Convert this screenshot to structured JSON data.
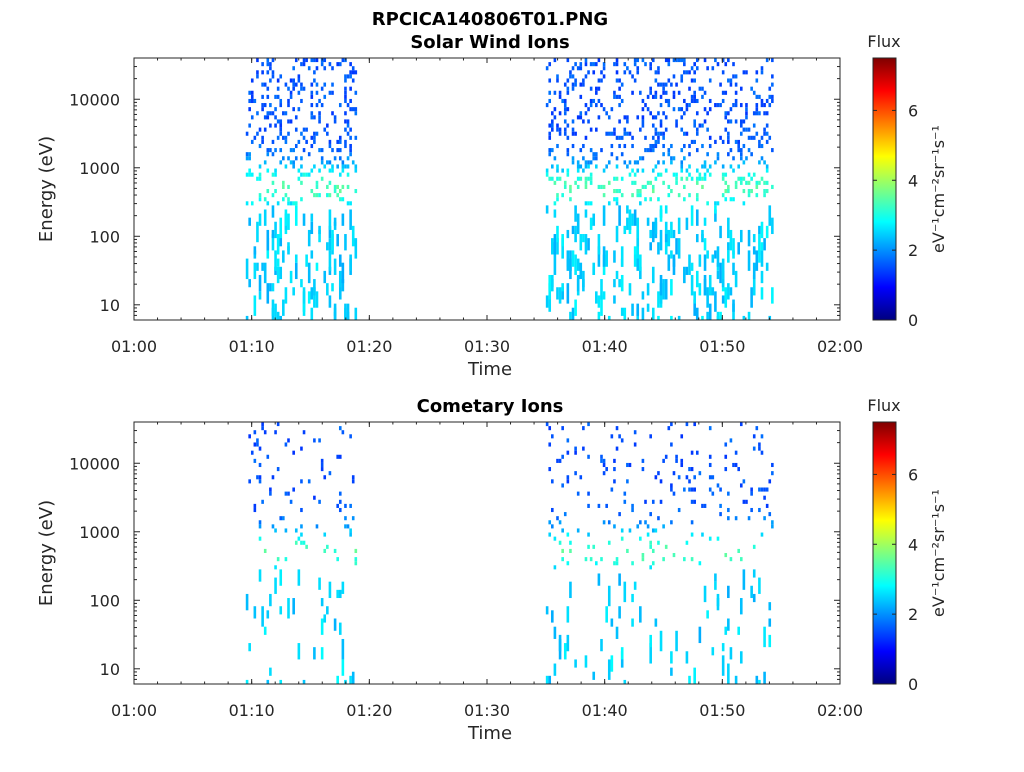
{
  "page_title": "RPCICA140806T01.PNG",
  "chart_data": [
    {
      "type": "heatmap",
      "title": "Solar Wind Ions",
      "xlabel": "Time",
      "ylabel": "Energy (eV)",
      "x_ticks": [
        "01:00",
        "01:10",
        "01:20",
        "01:30",
        "01:40",
        "01:50",
        "02:00"
      ],
      "xlim": [
        "01:00",
        "02:00"
      ],
      "y_scale": "log",
      "y_ticks": [
        "10",
        "100",
        "1000",
        "10000"
      ],
      "ylim": [
        6,
        40000
      ],
      "colorbar": {
        "label": "Flux",
        "units": "eV⁻¹cm⁻²sr⁻¹s⁻¹",
        "ticks": [
          "0",
          "2",
          "4",
          "6"
        ],
        "range": [
          0,
          7.5
        ],
        "colormap": "jet"
      },
      "activity_intervals": [
        [
          "01:09:30",
          "01:18:50"
        ],
        [
          "01:35:00",
          "01:54:20"
        ]
      ],
      "peak_flux_energy_eV": 500,
      "seed": 7,
      "density": 1.0
    },
    {
      "type": "heatmap",
      "title": "Cometary Ions",
      "xlabel": "Time",
      "ylabel": "Energy (eV)",
      "x_ticks": [
        "01:00",
        "01:10",
        "01:20",
        "01:30",
        "01:40",
        "01:50",
        "02:00"
      ],
      "xlim": [
        "01:00",
        "02:00"
      ],
      "y_scale": "log",
      "y_ticks": [
        "10",
        "100",
        "1000",
        "10000"
      ],
      "ylim": [
        6,
        40000
      ],
      "colorbar": {
        "label": "Flux",
        "units": "eV⁻¹cm⁻²sr⁻¹s⁻¹",
        "ticks": [
          "0",
          "2",
          "4",
          "6"
        ],
        "range": [
          0,
          7.5
        ],
        "colormap": "jet"
      },
      "activity_intervals": [
        [
          "01:09:30",
          "01:18:50"
        ],
        [
          "01:35:00",
          "01:54:20"
        ]
      ],
      "peak_flux_energy_eV": 500,
      "seed": 13,
      "density": 0.35
    }
  ]
}
